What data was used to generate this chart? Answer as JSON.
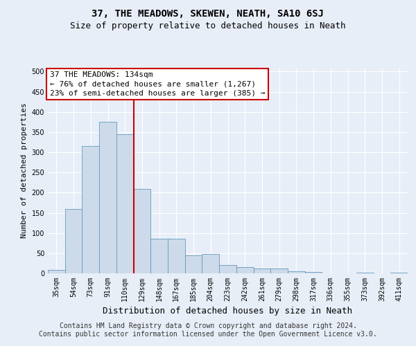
{
  "title": "37, THE MEADOWS, SKEWEN, NEATH, SA10 6SJ",
  "subtitle": "Size of property relative to detached houses in Neath",
  "xlabel": "Distribution of detached houses by size in Neath",
  "ylabel": "Number of detached properties",
  "categories": [
    "35sqm",
    "54sqm",
    "73sqm",
    "91sqm",
    "110sqm",
    "129sqm",
    "148sqm",
    "167sqm",
    "185sqm",
    "204sqm",
    "223sqm",
    "242sqm",
    "261sqm",
    "279sqm",
    "298sqm",
    "317sqm",
    "336sqm",
    "355sqm",
    "373sqm",
    "392sqm",
    "411sqm"
  ],
  "values": [
    8,
    160,
    315,
    375,
    345,
    210,
    85,
    85,
    45,
    48,
    20,
    15,
    12,
    12,
    5,
    3,
    0,
    0,
    2,
    0,
    2
  ],
  "bar_color": "#ccdaea",
  "bar_edge_color": "#6699bb",
  "annotation_box_facecolor": "#ffffff",
  "annotation_box_edgecolor": "#cc0000",
  "annotation_line_color": "#cc0000",
  "annotation_line1": "37 THE MEADOWS: 134sqm",
  "annotation_line2": "← 76% of detached houses are smaller (1,267)",
  "annotation_line3": "23% of semi-detached houses are larger (385) →",
  "red_line_x": 4.5,
  "ylim": [
    0,
    510
  ],
  "yticks": [
    0,
    50,
    100,
    150,
    200,
    250,
    300,
    350,
    400,
    450,
    500
  ],
  "footer_line1": "Contains HM Land Registry data © Crown copyright and database right 2024.",
  "footer_line2": "Contains public sector information licensed under the Open Government Licence v3.0.",
  "bg_color": "#e8eef8",
  "grid_color": "#ffffff",
  "title_fontsize": 10,
  "subtitle_fontsize": 9,
  "ylabel_fontsize": 8,
  "xlabel_fontsize": 9,
  "tick_fontsize": 7,
  "annotation_fontsize": 8,
  "footer_fontsize": 7
}
